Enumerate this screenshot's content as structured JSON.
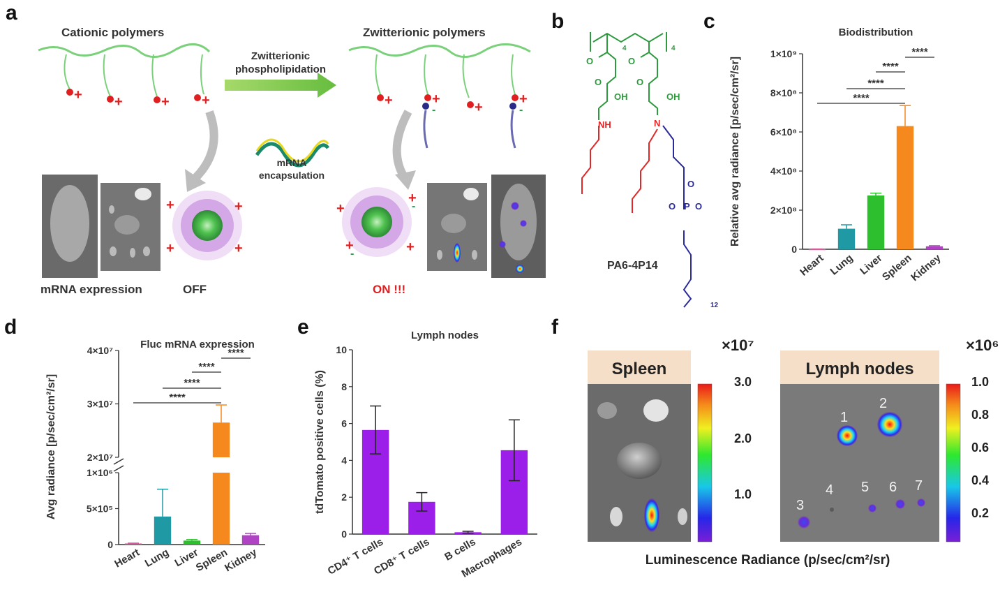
{
  "panel_letters": [
    "a",
    "b",
    "c",
    "d",
    "e",
    "f"
  ],
  "panel_a": {
    "left_title": "Cationic polymers",
    "right_title": "Zwitterionic polymers",
    "arrow_label_line1": "Zwitterionic",
    "arrow_label_line2": "phospholipidation",
    "encapsulation_line1": "mRNA",
    "encapsulation_line2": "encapsulation",
    "expression_label": "mRNA expression",
    "off_label": "OFF",
    "on_label": "ON !!!",
    "plus": "+",
    "minus": "-"
  },
  "panel_b": {
    "compound_name": "PA6-4P14",
    "oh1": "OH",
    "oh2": "OH",
    "nh": "NH",
    "n": "N",
    "o_labels": [
      "O",
      "O",
      "O",
      "O",
      "O",
      "O"
    ],
    "p": "P",
    "o_minus": "O",
    "sub4a": "4",
    "sub4b": "4",
    "sub12": "12",
    "colors": {
      "polymer": "#2e9a3e",
      "amine": "#e02828",
      "phosphate": "#2a2a9a"
    }
  },
  "chart_data": [
    {
      "id": "c",
      "type": "bar",
      "title": "Biodistribution",
      "ylabel": "Relative avg radiance [p/sec/cm²/sr]",
      "categories": [
        "Heart",
        "Lung",
        "Liver",
        "Spleen",
        "Kidney"
      ],
      "values": [
        1000000.0,
        105000000.0,
        275000000.0,
        630000000.0,
        15000000.0
      ],
      "errors": [
        500000.0,
        20000000.0,
        12000000.0,
        105000000.0,
        3000000.0
      ],
      "colors": [
        "#d65a9c",
        "#1f9aa5",
        "#2ebf2e",
        "#f5891e",
        "#b042c4"
      ],
      "ylim": [
        0,
        1000000000.0
      ],
      "ticks": [
        0,
        200000000.0,
        400000000.0,
        600000000.0,
        800000000.0,
        1000000000.0
      ],
      "tick_labels": [
        "0",
        "2×10⁸",
        "4×10⁸",
        "6×10⁸",
        "8×10⁸",
        "1×10⁹"
      ],
      "significance": [
        {
          "from": "Heart",
          "to": "Spleen",
          "label": "****"
        },
        {
          "from": "Lung",
          "to": "Spleen",
          "label": "****"
        },
        {
          "from": "Liver",
          "to": "Spleen",
          "label": "****"
        },
        {
          "from": "Spleen",
          "to": "Kidney",
          "label": "****"
        }
      ]
    },
    {
      "id": "d",
      "type": "bar",
      "title": "Fluc mRNA expression",
      "ylabel": "Avg radiance [p/sec/cm²/sr]",
      "categories": [
        "Heart",
        "Lung",
        "Liver",
        "Spleen",
        "Kidney"
      ],
      "values": [
        15000.0,
        390000.0,
        55000.0,
        26500000.0,
        130000.0
      ],
      "errors": [
        5000.0,
        380000.0,
        15000.0,
        3300000.0,
        25000.0
      ],
      "colors": [
        "#d65a9c",
        "#1f9aa5",
        "#2ebf2e",
        "#f5891e",
        "#b042c4"
      ],
      "axis_break": {
        "lower": [
          0,
          1000000.0
        ],
        "upper": [
          20000000.0,
          40000000.0
        ]
      },
      "ticks_lower": [
        0,
        500000.0,
        1000000.0
      ],
      "tick_labels_lower": [
        "0",
        "5×10⁵",
        "1×10⁶"
      ],
      "ticks_upper": [
        20000000.0,
        30000000.0,
        40000000.0
      ],
      "tick_labels_upper": [
        "2×10⁷",
        "3×10⁷",
        "4×10⁷"
      ],
      "significance": [
        {
          "from": "Heart",
          "to": "Spleen",
          "label": "****"
        },
        {
          "from": "Lung",
          "to": "Spleen",
          "label": "****"
        },
        {
          "from": "Liver",
          "to": "Spleen",
          "label": "****"
        },
        {
          "from": "Spleen",
          "to": "Kidney",
          "label": "****"
        }
      ]
    },
    {
      "id": "e",
      "type": "bar",
      "title": "Lymph nodes",
      "ylabel": "tdTomato positive cells (%)",
      "categories": [
        "CD4⁺ T cells",
        "CD8⁺ T cells",
        "B cells",
        "Macrophages"
      ],
      "values": [
        5.65,
        1.75,
        0.1,
        4.55
      ],
      "errors": [
        1.3,
        0.5,
        0.05,
        1.65
      ],
      "colors": [
        "#9b1fe8",
        "#9b1fe8",
        "#9b1fe8",
        "#9b1fe8"
      ],
      "ylim": [
        0,
        10
      ],
      "ticks": [
        0,
        2,
        4,
        6,
        8,
        10
      ],
      "tick_labels": [
        "0",
        "2",
        "4",
        "6",
        "8",
        "10"
      ]
    }
  ],
  "panel_f": {
    "spleen_label": "Spleen",
    "lymph_label": "Lymph nodes",
    "spleen_scale_exp": "×10⁷",
    "lymph_scale_exp": "×10⁶",
    "spleen_scale_ticks": [
      "3.0",
      "2.0",
      "1.0"
    ],
    "lymph_scale_ticks": [
      "1.0",
      "0.8",
      "0.6",
      "0.4",
      "0.2"
    ],
    "node_numbers": [
      "1",
      "2",
      "3",
      "4",
      "5",
      "6",
      "7"
    ],
    "xlabel": "Luminescence Radiance (p/sec/cm²/sr)"
  }
}
